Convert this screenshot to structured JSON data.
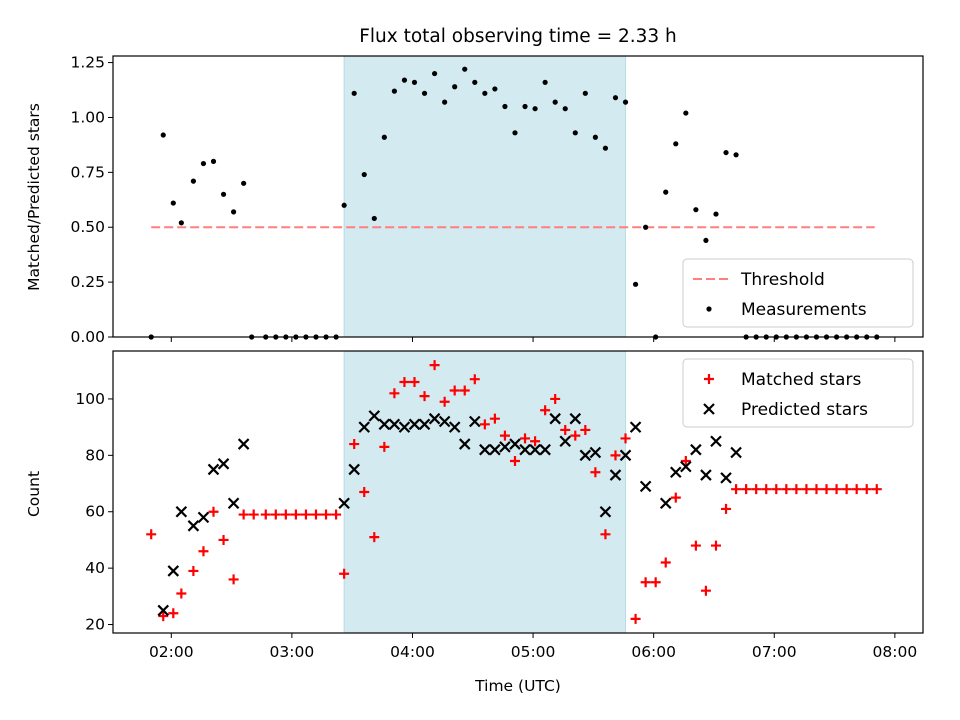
{
  "chart_data": [
    {
      "type": "scatter",
      "title": "Flux total observing time = 2.33 h",
      "xlabel": "",
      "ylabel": "Matched/Predicted stars",
      "xlim": [
        "01:31",
        "08:14"
      ],
      "ylim": [
        0,
        1.28
      ],
      "yticks": [
        0.0,
        0.25,
        0.5,
        0.75,
        1.0,
        1.25
      ],
      "ytick_labels": [
        "0.00",
        "0.25",
        "0.50",
        "0.75",
        "1.00",
        "1.25"
      ],
      "xticks": [
        "02:00",
        "03:00",
        "04:00",
        "05:00",
        "06:00",
        "07:00",
        "08:00"
      ],
      "x_tick_labels_shown": false,
      "highlight_span": {
        "start": "03:26",
        "end": "05:46",
        "color": "#d3eaf0"
      },
      "threshold": {
        "name": "Threshold",
        "y": 0.5,
        "x_start": "01:50",
        "x_end": "07:50",
        "color": "#ff7f7f",
        "style": "dashed"
      },
      "legend": {
        "position": "lower right",
        "entries": [
          "Threshold",
          "Measurements"
        ]
      },
      "series": [
        {
          "name": "Measurements",
          "marker": "dot",
          "color": "#000000",
          "points": [
            [
              "01:50",
              0.0
            ],
            [
              "01:56",
              0.92
            ],
            [
              "02:01",
              0.61
            ],
            [
              "02:05",
              0.52
            ],
            [
              "02:11",
              0.71
            ],
            [
              "02:16",
              0.79
            ],
            [
              "02:21",
              0.8
            ],
            [
              "02:26",
              0.65
            ],
            [
              "02:31",
              0.57
            ],
            [
              "02:36",
              0.7
            ],
            [
              "02:40",
              0.0
            ],
            [
              "02:47",
              0.0
            ],
            [
              "02:52",
              0.0
            ],
            [
              "02:57",
              0.0
            ],
            [
              "03:02",
              0.0
            ],
            [
              "03:07",
              0.0
            ],
            [
              "03:12",
              0.0
            ],
            [
              "03:17",
              0.0
            ],
            [
              "03:22",
              0.0
            ],
            [
              "03:26",
              0.6
            ],
            [
              "03:31",
              1.11
            ],
            [
              "03:36",
              0.74
            ],
            [
              "03:41",
              0.54
            ],
            [
              "03:46",
              0.91
            ],
            [
              "03:51",
              1.12
            ],
            [
              "03:56",
              1.17
            ],
            [
              "04:01",
              1.16
            ],
            [
              "04:06",
              1.11
            ],
            [
              "04:11",
              1.2
            ],
            [
              "04:16",
              1.07
            ],
            [
              "04:21",
              1.14
            ],
            [
              "04:26",
              1.22
            ],
            [
              "04:31",
              1.16
            ],
            [
              "04:36",
              1.11
            ],
            [
              "04:41",
              1.13
            ],
            [
              "04:46",
              1.05
            ],
            [
              "04:51",
              0.93
            ],
            [
              "04:56",
              1.05
            ],
            [
              "05:01",
              1.04
            ],
            [
              "05:06",
              1.16
            ],
            [
              "05:11",
              1.07
            ],
            [
              "05:16",
              1.04
            ],
            [
              "05:21",
              0.93
            ],
            [
              "05:26",
              1.11
            ],
            [
              "05:31",
              0.91
            ],
            [
              "05:36",
              0.86
            ],
            [
              "05:41",
              1.09
            ],
            [
              "05:46",
              1.07
            ],
            [
              "05:51",
              0.24
            ],
            [
              "05:56",
              0.5
            ],
            [
              "06:01",
              0.0
            ],
            [
              "06:06",
              0.66
            ],
            [
              "06:11",
              0.88
            ],
            [
              "06:16",
              1.02
            ],
            [
              "06:21",
              0.58
            ],
            [
              "06:26",
              0.44
            ],
            [
              "06:31",
              0.56
            ],
            [
              "06:36",
              0.84
            ],
            [
              "06:41",
              0.83
            ],
            [
              "06:46",
              0.0
            ],
            [
              "06:51",
              0.0
            ],
            [
              "06:56",
              0.0
            ],
            [
              "07:01",
              0.0
            ],
            [
              "07:06",
              0.0
            ],
            [
              "07:11",
              0.0
            ],
            [
              "07:16",
              0.0
            ],
            [
              "07:21",
              0.0
            ],
            [
              "07:26",
              0.0
            ],
            [
              "07:31",
              0.0
            ],
            [
              "07:36",
              0.0
            ],
            [
              "07:41",
              0.0
            ],
            [
              "07:46",
              0.0
            ],
            [
              "07:51",
              0.0
            ]
          ]
        }
      ]
    },
    {
      "type": "scatter",
      "title": "",
      "xlabel": "Time (UTC)",
      "ylabel": "Count",
      "xlim": [
        "01:31",
        "08:14"
      ],
      "ylim": [
        17,
        117
      ],
      "yticks": [
        20,
        40,
        60,
        80,
        100
      ],
      "ytick_labels": [
        "20",
        "40",
        "60",
        "80",
        "100"
      ],
      "xticks": [
        "02:00",
        "03:00",
        "04:00",
        "05:00",
        "06:00",
        "07:00",
        "08:00"
      ],
      "x_tick_labels_shown": true,
      "highlight_span": {
        "start": "03:26",
        "end": "05:46",
        "color": "#d3eaf0"
      },
      "legend": {
        "position": "upper right",
        "entries": [
          "Matched stars",
          "Predicted stars"
        ]
      },
      "series": [
        {
          "name": "Matched stars",
          "marker": "plus",
          "color": "#ff0000",
          "points": [
            [
              "01:50",
              52
            ],
            [
              "01:56",
              23
            ],
            [
              "02:01",
              24
            ],
            [
              "02:05",
              31
            ],
            [
              "02:11",
              39
            ],
            [
              "02:16",
              46
            ],
            [
              "02:21",
              60
            ],
            [
              "02:26",
              50
            ],
            [
              "02:31",
              36
            ],
            [
              "02:36",
              59
            ],
            [
              "02:41",
              59
            ],
            [
              "02:47",
              59
            ],
            [
              "02:52",
              59
            ],
            [
              "02:57",
              59
            ],
            [
              "03:02",
              59
            ],
            [
              "03:07",
              59
            ],
            [
              "03:12",
              59
            ],
            [
              "03:17",
              59
            ],
            [
              "03:22",
              59
            ],
            [
              "03:26",
              38
            ],
            [
              "03:31",
              84
            ],
            [
              "03:36",
              67
            ],
            [
              "03:41",
              51
            ],
            [
              "03:46",
              83
            ],
            [
              "03:51",
              102
            ],
            [
              "03:56",
              106
            ],
            [
              "04:01",
              106
            ],
            [
              "04:06",
              101
            ],
            [
              "04:11",
              112
            ],
            [
              "04:16",
              99
            ],
            [
              "04:21",
              103
            ],
            [
              "04:26",
              103
            ],
            [
              "04:31",
              107
            ],
            [
              "04:36",
              91
            ],
            [
              "04:41",
              93
            ],
            [
              "04:46",
              87
            ],
            [
              "04:51",
              78
            ],
            [
              "04:56",
              86
            ],
            [
              "05:01",
              85
            ],
            [
              "05:06",
              96
            ],
            [
              "05:11",
              100
            ],
            [
              "05:16",
              89
            ],
            [
              "05:21",
              87
            ],
            [
              "05:26",
              89
            ],
            [
              "05:31",
              74
            ],
            [
              "05:36",
              52
            ],
            [
              "05:41",
              80
            ],
            [
              "05:46",
              86
            ],
            [
              "05:51",
              22
            ],
            [
              "05:56",
              35
            ],
            [
              "06:01",
              35
            ],
            [
              "06:06",
              42
            ],
            [
              "06:11",
              65
            ],
            [
              "06:16",
              78
            ],
            [
              "06:21",
              48
            ],
            [
              "06:26",
              32
            ],
            [
              "06:31",
              48
            ],
            [
              "06:36",
              61
            ],
            [
              "06:41",
              68
            ],
            [
              "06:46",
              68
            ],
            [
              "06:51",
              68
            ],
            [
              "06:56",
              68
            ],
            [
              "07:01",
              68
            ],
            [
              "07:06",
              68
            ],
            [
              "07:11",
              68
            ],
            [
              "07:16",
              68
            ],
            [
              "07:21",
              68
            ],
            [
              "07:26",
              68
            ],
            [
              "07:31",
              68
            ],
            [
              "07:36",
              68
            ],
            [
              "07:41",
              68
            ],
            [
              "07:46",
              68
            ],
            [
              "07:51",
              68
            ]
          ]
        },
        {
          "name": "Predicted stars",
          "marker": "x",
          "color": "#000000",
          "points": [
            [
              "01:56",
              25
            ],
            [
              "02:01",
              39
            ],
            [
              "02:05",
              60
            ],
            [
              "02:11",
              55
            ],
            [
              "02:16",
              58
            ],
            [
              "02:21",
              75
            ],
            [
              "02:26",
              77
            ],
            [
              "02:31",
              63
            ],
            [
              "02:36",
              84
            ],
            [
              "03:26",
              63
            ],
            [
              "03:31",
              75
            ],
            [
              "03:36",
              90
            ],
            [
              "03:41",
              94
            ],
            [
              "03:46",
              91
            ],
            [
              "03:51",
              91
            ],
            [
              "03:56",
              90
            ],
            [
              "04:01",
              91
            ],
            [
              "04:06",
              91
            ],
            [
              "04:11",
              93
            ],
            [
              "04:16",
              92
            ],
            [
              "04:21",
              90
            ],
            [
              "04:26",
              84
            ],
            [
              "04:31",
              92
            ],
            [
              "04:36",
              82
            ],
            [
              "04:41",
              82
            ],
            [
              "04:46",
              83
            ],
            [
              "04:51",
              84
            ],
            [
              "04:56",
              82
            ],
            [
              "05:01",
              82
            ],
            [
              "05:06",
              82
            ],
            [
              "05:11",
              93
            ],
            [
              "05:16",
              85
            ],
            [
              "05:21",
              93
            ],
            [
              "05:26",
              80
            ],
            [
              "05:31",
              81
            ],
            [
              "05:36",
              60
            ],
            [
              "05:41",
              73
            ],
            [
              "05:46",
              80
            ],
            [
              "05:51",
              90
            ],
            [
              "05:56",
              69
            ],
            [
              "06:06",
              63
            ],
            [
              "06:11",
              74
            ],
            [
              "06:16",
              76
            ],
            [
              "06:21",
              82
            ],
            [
              "06:26",
              73
            ],
            [
              "06:31",
              85
            ],
            [
              "06:36",
              72
            ],
            [
              "06:41",
              81
            ]
          ]
        }
      ]
    }
  ]
}
